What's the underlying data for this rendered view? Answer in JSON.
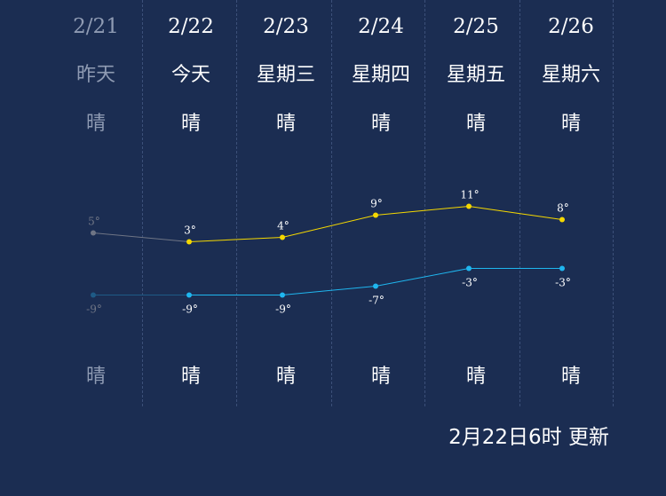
{
  "days": [
    {
      "date": "2/21",
      "day": "昨天",
      "cond_day": "晴",
      "cond_night": "晴",
      "past": true
    },
    {
      "date": "2/22",
      "day": "今天",
      "cond_day": "晴",
      "cond_night": "晴",
      "past": false
    },
    {
      "date": "2/23",
      "day": "星期三",
      "cond_day": "晴",
      "cond_night": "晴",
      "past": false
    },
    {
      "date": "2/24",
      "day": "星期四",
      "cond_day": "晴",
      "cond_night": "晴",
      "past": false
    },
    {
      "date": "2/25",
      "day": "星期五",
      "cond_day": "晴",
      "cond_night": "晴",
      "past": false
    },
    {
      "date": "2/26",
      "day": "星期六",
      "cond_day": "晴",
      "cond_night": "晴",
      "past": false
    }
  ],
  "chart_data": {
    "type": "line",
    "categories": [
      "2/21",
      "2/22",
      "2/23",
      "2/24",
      "2/25",
      "2/26"
    ],
    "series": [
      {
        "values": [
          5,
          3,
          4,
          9,
          11,
          8
        ],
        "labels": [
          "5°",
          "3°",
          "4°",
          "9°",
          "11°",
          "8°"
        ],
        "color": "#f5d800"
      },
      {
        "values": [
          -9,
          -9,
          -9,
          -7,
          -3,
          -3
        ],
        "labels": [
          "-9°",
          "-9°",
          "-9°",
          "-7°",
          "-3°",
          "-3°"
        ],
        "color": "#1fb6ef"
      }
    ],
    "past_color": "#6f7585",
    "past_low_color": "#1e5a86",
    "grid": false
  },
  "colors": {
    "background": "#1b2d52",
    "divider": "#3c5079",
    "text": "#ffffff",
    "past_text": "#8f9bb3"
  },
  "footer": {
    "updated": "2月22日6时 更新"
  }
}
